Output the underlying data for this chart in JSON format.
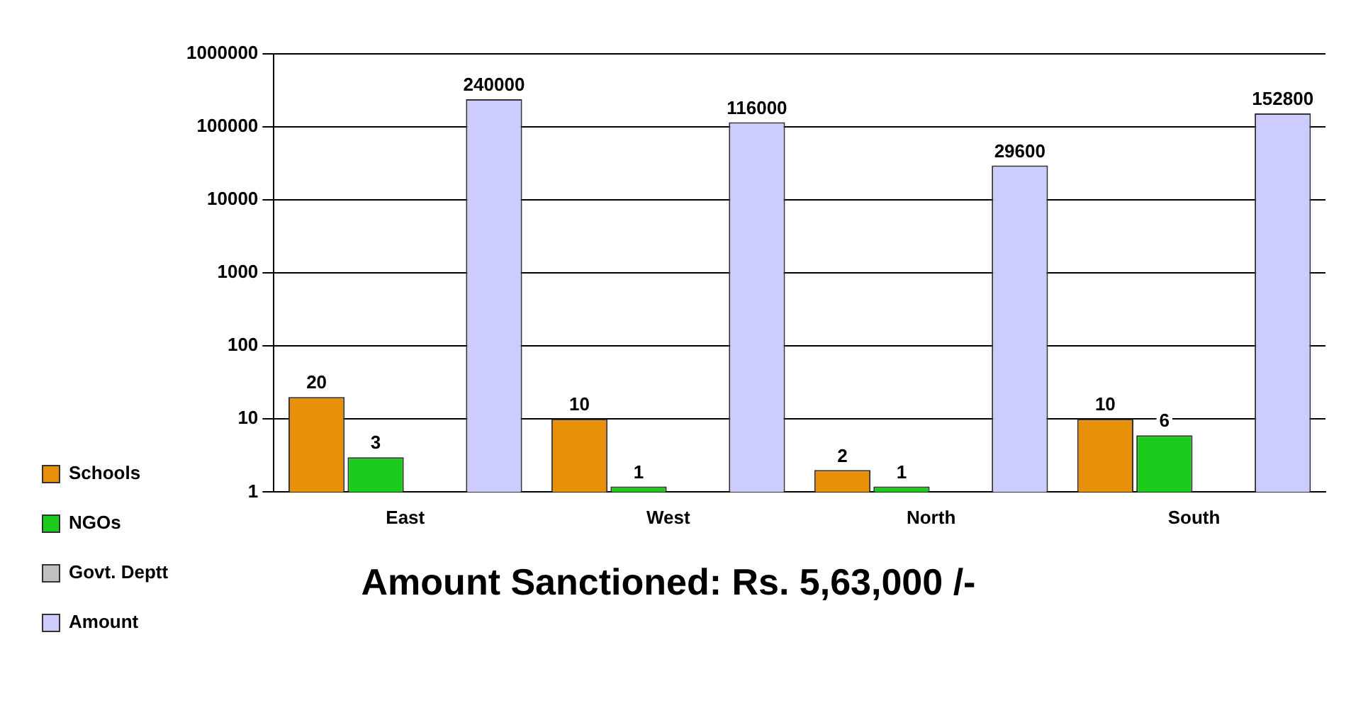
{
  "chart_data": {
    "type": "bar",
    "title": "Amount Sanctioned: Rs. 5,63,000 /-",
    "categories": [
      "East",
      "West",
      "North",
      "South"
    ],
    "series": [
      {
        "name": "Schools",
        "color": "#e8900a",
        "values": [
          20,
          10,
          2,
          10
        ]
      },
      {
        "name": "NGOs",
        "color": "#1ccc1c",
        "values": [
          3,
          1,
          1,
          6
        ]
      },
      {
        "name": "Govt. Deptt",
        "color": "#c0c0c0",
        "values": [
          null,
          null,
          null,
          null
        ]
      },
      {
        "name": "Amount",
        "color": "#ccccff",
        "values": [
          240000,
          116000,
          29600,
          152800
        ]
      }
    ],
    "log": "y",
    "ylim": [
      1,
      1000000
    ],
    "yticks": [
      1,
      10,
      100,
      1000,
      10000,
      100000,
      1000000
    ],
    "grid": "y",
    "legend": "bottom left",
    "data_labels": true
  }
}
